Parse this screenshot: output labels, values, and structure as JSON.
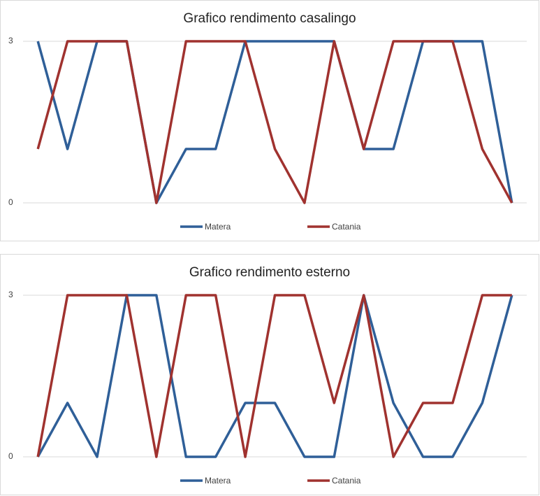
{
  "chart_data": [
    {
      "type": "line",
      "title": "Grafico rendimento casalingo",
      "categories": [
        null,
        null,
        null,
        null,
        null,
        null,
        null,
        null,
        null,
        null,
        null,
        null,
        null,
        null,
        null,
        null,
        null
      ],
      "series": [
        {
          "name": "Matera",
          "color": "#2f5f98",
          "values": [
            3,
            1,
            3,
            3,
            0,
            1,
            1,
            3,
            3,
            3,
            3,
            1,
            1,
            3,
            3,
            3,
            0
          ]
        },
        {
          "name": "Catania",
          "color": "#a0322f",
          "values": [
            1,
            3,
            3,
            3,
            0,
            3,
            3,
            3,
            1,
            0,
            3,
            1,
            3,
            3,
            3,
            1,
            0
          ]
        }
      ],
      "ylim": [
        0,
        3
      ],
      "yticks": [
        0,
        3
      ],
      "grid": true,
      "legend": "bottom"
    },
    {
      "type": "line",
      "title": "Grafico rendimento esterno",
      "categories": [
        null,
        null,
        null,
        null,
        null,
        null,
        null,
        null,
        null,
        null,
        null,
        null,
        null,
        null,
        null,
        null,
        null
      ],
      "series": [
        {
          "name": "Matera",
          "color": "#2f5f98",
          "values": [
            0,
            1,
            0,
            3,
            3,
            0,
            0,
            1,
            1,
            0,
            0,
            3,
            1,
            0,
            0,
            1,
            3
          ]
        },
        {
          "name": "Catania",
          "color": "#a0322f",
          "values": [
            0,
            3,
            3,
            3,
            0,
            3,
            3,
            0,
            3,
            3,
            1,
            3,
            0,
            1,
            1,
            3,
            3
          ]
        }
      ],
      "ylim": [
        0,
        3
      ],
      "yticks": [
        0,
        3
      ],
      "grid": true,
      "legend": "bottom"
    }
  ]
}
